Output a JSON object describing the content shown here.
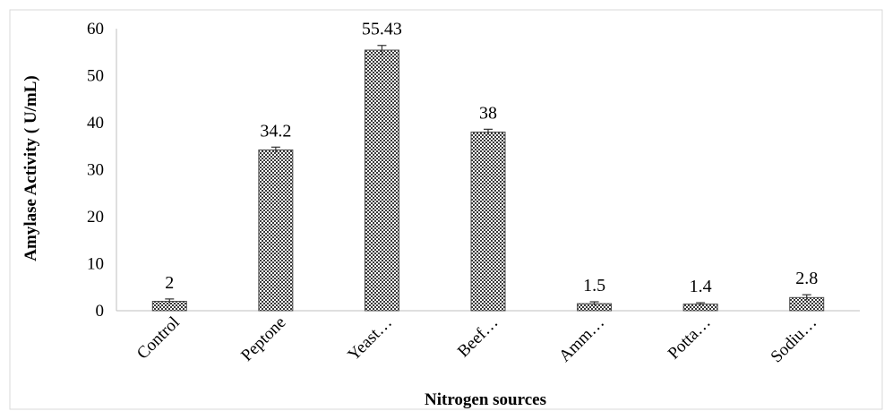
{
  "chart_data": {
    "type": "bar",
    "title": "",
    "xlabel": "Nitrogen sources",
    "ylabel": "Amylase Activity ( U/mL)",
    "categories": [
      "Control",
      "Peptone",
      "Yeast…",
      "Beef…",
      "Amm…",
      "Potta…",
      "Sodiu…"
    ],
    "values": [
      2,
      34.2,
      55.43,
      38,
      1.5,
      1.4,
      2.8
    ],
    "data_labels": [
      "2",
      "34.2",
      "55.43",
      "38",
      "1.5",
      "1.4",
      "2.8"
    ],
    "error": [
      0.5,
      0.6,
      1.0,
      0.6,
      0.4,
      0.3,
      0.6
    ],
    "ylim": [
      0,
      60
    ],
    "yticks": [
      0,
      10,
      20,
      30,
      40,
      50,
      60
    ],
    "grid": false,
    "legend": "none",
    "bar_color": "#4a4a4a"
  }
}
